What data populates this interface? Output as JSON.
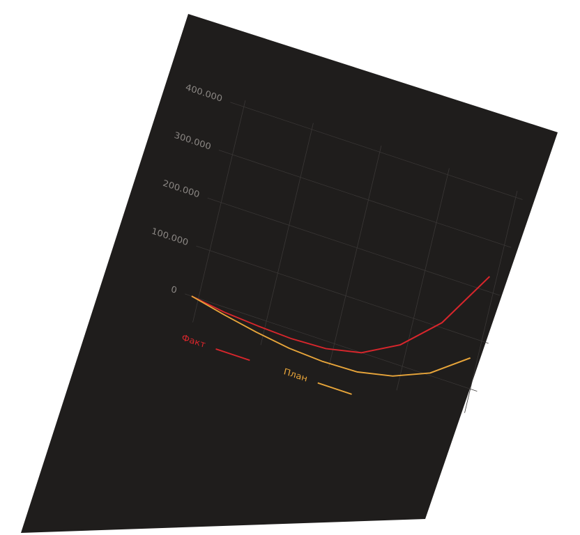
{
  "chart_data": {
    "type": "line",
    "categories": [
      null,
      null,
      null,
      null,
      null,
      null,
      null,
      null,
      null
    ],
    "series": [
      {
        "name": "Факт",
        "color": "#d8262c",
        "values": [
          0,
          -10000,
          -15000,
          -18000,
          -15000,
          0,
          40000,
          110000,
          230000
        ]
      },
      {
        "name": "План",
        "color": "#e8a53a",
        "values": [
          0,
          -15000,
          -28000,
          -38000,
          -42000,
          -40000,
          -25000,
          5000,
          60000
        ]
      }
    ],
    "ylim": [
      -50000,
      400000
    ],
    "yticks": [
      0,
      {
        "value": 100000,
        "label": "100.000"
      },
      {
        "value": 200000,
        "label": "200.000"
      },
      {
        "value": 300000,
        "label": "300.000"
      },
      {
        "value": 400000,
        "label": "400.000"
      }
    ],
    "grid": true
  }
}
